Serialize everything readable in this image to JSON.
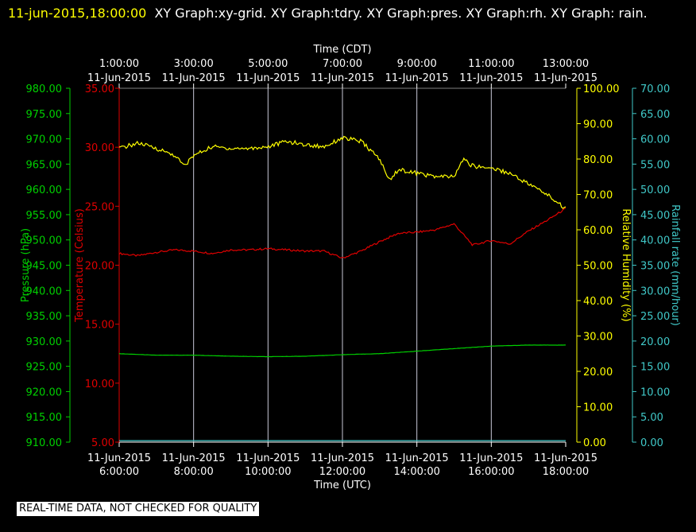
{
  "header": {
    "timestamp": "11-jun-2015,18:00:00",
    "titles": "XY Graph:xy-grid.  XY Graph:tdry.  XY Graph:pres.  XY Graph:rh.  XY Graph: rain."
  },
  "notice": "REAL-TIME DATA, NOT CHECKED FOR QUALITY",
  "colors": {
    "background": "#000000",
    "grid": "#c8c8d8",
    "temperature": "#e00000",
    "pressure": "#00d000",
    "humidity": "#ffff00",
    "rain": "#40c8c8",
    "text": "#ffffff"
  },
  "chart_data": {
    "type": "line",
    "x_top": {
      "title": "Time (CDT)",
      "ticks": [
        {
          "time": "1:00:00",
          "date": "11-Jun-2015"
        },
        {
          "time": "3:00:00",
          "date": "11-Jun-2015"
        },
        {
          "time": "5:00:00",
          "date": "11-Jun-2015"
        },
        {
          "time": "7:00:00",
          "date": "11-Jun-2015"
        },
        {
          "time": "9:00:00",
          "date": "11-Jun-2015"
        },
        {
          "time": "11:00:00",
          "date": "11-Jun-2015"
        },
        {
          "time": "13:00:00",
          "date": "11-Jun-2015"
        }
      ]
    },
    "x_bottom": {
      "title": "Time (UTC)",
      "range": [
        "2015-06-11 06:00:00",
        "2015-06-11 18:00:00"
      ],
      "ticks": [
        {
          "date": "11-Jun-2015",
          "time": "6:00:00"
        },
        {
          "date": "11-Jun-2015",
          "time": "8:00:00"
        },
        {
          "date": "11-Jun-2015",
          "time": "10:00:00"
        },
        {
          "date": "11-Jun-2015",
          "time": "12:00:00"
        },
        {
          "date": "11-Jun-2015",
          "time": "14:00:00"
        },
        {
          "date": "11-Jun-2015",
          "time": "16:00:00"
        },
        {
          "date": "11-Jun-2015",
          "time": "18:00:00"
        }
      ]
    },
    "axes": {
      "pressure": {
        "label": "Pressure (hPa)",
        "range": [
          910,
          980
        ],
        "ticks": [
          "910.00",
          "915.00",
          "920.00",
          "925.00",
          "930.00",
          "935.00",
          "940.00",
          "945.00",
          "950.00",
          "955.00",
          "960.00",
          "965.00",
          "970.00",
          "975.00",
          "980.00"
        ]
      },
      "temperature": {
        "label": "Temperature (Celsius)",
        "range": [
          5,
          35
        ],
        "ticks": [
          "5.00",
          "10.00",
          "15.00",
          "20.00",
          "25.00",
          "30.00",
          "35.00"
        ]
      },
      "humidity": {
        "label": "Relative Humidity (%)",
        "range": [
          0,
          100
        ],
        "ticks": [
          "0.00",
          "10.00",
          "20.00",
          "30.00",
          "40.00",
          "50.00",
          "60.00",
          "70.00",
          "80.00",
          "90.00",
          "100.00"
        ]
      },
      "rain": {
        "label": "Rainfall rate (mm/hour)",
        "range": [
          0,
          70
        ],
        "ticks": [
          "0.00",
          "5.00",
          "10.00",
          "15.00",
          "20.00",
          "25.00",
          "30.00",
          "35.00",
          "40.00",
          "45.00",
          "50.00",
          "55.00",
          "60.00",
          "65.00",
          "70.00"
        ]
      }
    },
    "grid": true,
    "series": [
      {
        "name": "Temperature (Celsius)",
        "axis": "temperature",
        "color": "#e00000",
        "x": [
          6.0,
          6.5,
          7.0,
          7.5,
          8.0,
          8.5,
          9.0,
          9.5,
          10.0,
          10.5,
          11.0,
          11.5,
          12.0,
          12.5,
          13.0,
          13.5,
          14.0,
          14.5,
          15.0,
          15.25,
          15.5,
          16.0,
          16.5,
          17.0,
          17.5,
          18.0
        ],
        "y": [
          21.0,
          20.8,
          21.1,
          21.3,
          21.2,
          21.0,
          21.3,
          21.3,
          21.4,
          21.3,
          21.2,
          21.2,
          20.6,
          21.2,
          22.0,
          22.7,
          22.8,
          23.0,
          23.5,
          22.6,
          21.7,
          22.1,
          21.8,
          22.9,
          23.8,
          24.8
        ]
      },
      {
        "name": "Pressure (hPa)",
        "axis": "pressure",
        "color": "#00d000",
        "x": [
          6.0,
          7.0,
          8.0,
          9.0,
          10.0,
          11.0,
          12.0,
          13.0,
          14.0,
          15.0,
          16.0,
          17.0,
          18.0
        ],
        "y": [
          927.5,
          927.2,
          927.2,
          927.0,
          926.9,
          927.0,
          927.3,
          927.5,
          928.0,
          928.5,
          929.0,
          929.2,
          929.2
        ]
      },
      {
        "name": "Relative Humidity (%)",
        "axis": "humidity",
        "color": "#ffff00",
        "x": [
          6.0,
          6.5,
          7.0,
          7.5,
          7.75,
          8.0,
          8.5,
          9.0,
          9.5,
          10.0,
          10.5,
          11.0,
          11.5,
          12.0,
          12.5,
          13.0,
          13.25,
          13.5,
          14.0,
          14.5,
          15.0,
          15.25,
          15.5,
          16.0,
          16.5,
          17.0,
          17.5,
          18.0
        ],
        "y": [
          83.0,
          84.5,
          83.0,
          81.0,
          78.0,
          81.0,
          83.5,
          83.0,
          83.0,
          83.5,
          85.0,
          84.0,
          83.5,
          86.0,
          85.0,
          80.0,
          74.0,
          77.0,
          76.0,
          75.0,
          75.0,
          80.0,
          78.0,
          77.5,
          76.0,
          73.0,
          70.0,
          66.0
        ]
      },
      {
        "name": "Rainfall rate (mm/hour)",
        "axis": "rain",
        "color": "#40c8c8",
        "x": [
          6.0,
          18.0
        ],
        "y": [
          0.3,
          0.3
        ]
      }
    ]
  }
}
